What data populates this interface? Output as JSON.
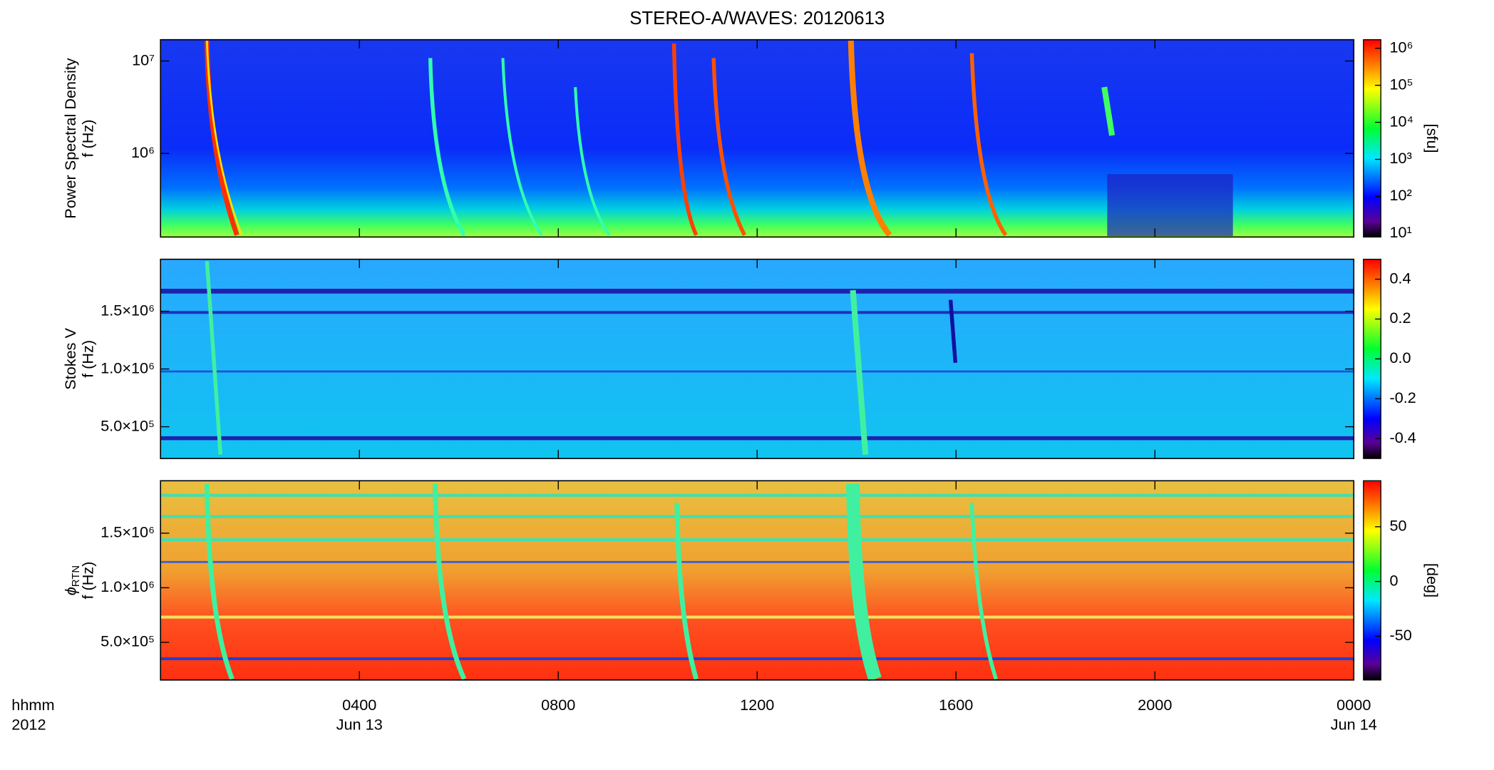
{
  "title": "STEREO-A/WAVES: 20120613",
  "chart_data": [
    {
      "type": "heatmap",
      "ylabel": "Power Spectral Density",
      "ylabel2": "f (Hz)",
      "ylog": true,
      "ylim": [
        124500,
        17000000
      ],
      "yticks": [
        {
          "value": 10000000,
          "label": "10⁷"
        },
        {
          "value": 1000000,
          "label": "10⁶"
        }
      ],
      "xlim": [
        0,
        24
      ],
      "xticks": [
        4,
        8,
        12,
        16,
        20
      ],
      "colorbar_label": "[sfu]",
      "clog": true,
      "clim": [
        8,
        1700000
      ],
      "cticks": [
        {
          "value": 1000000,
          "label": "10⁶"
        },
        {
          "value": 100000,
          "label": "10⁵"
        },
        {
          "value": 10000,
          "label": "10⁴"
        },
        {
          "value": 1000,
          "label": "10³"
        },
        {
          "value": 100,
          "label": "10²"
        },
        {
          "value": 10,
          "label": "10¹"
        }
      ]
    },
    {
      "type": "heatmap",
      "ylabel": "Stokes V",
      "ylabel2": "f (Hz)",
      "ylog": false,
      "ylim": [
        225000,
        1950000
      ],
      "yticks": [
        {
          "value": 1500000,
          "label": "1.5×10⁶"
        },
        {
          "value": 1000000,
          "label": "1.0×10⁶"
        },
        {
          "value": 500000,
          "label": "5.0×10⁵"
        }
      ],
      "xlim": [
        0,
        24
      ],
      "xticks": [
        4,
        8,
        12,
        16,
        20
      ],
      "clog": false,
      "clim": [
        -0.5,
        0.5
      ],
      "cticks": [
        0.4,
        0.2,
        {
          "value": 0,
          "label": "0.0"
        },
        -0.2,
        -0.4
      ]
    },
    {
      "type": "heatmap",
      "ylabel": "ϕ",
      "ylabel_sub": "RTN",
      "ylabel2": "f (Hz)",
      "ylog": false,
      "ylim": [
        155000,
        1980000
      ],
      "yticks": [
        {
          "value": 1500000,
          "label": "1.5×10⁶"
        },
        {
          "value": 1000000,
          "label": "1.0×10⁶"
        },
        {
          "value": 500000,
          "label": "5.0×10⁵"
        }
      ],
      "xlim": [
        0,
        24
      ],
      "xticks": [
        {
          "value": 4,
          "label": "0400"
        },
        {
          "value": 8,
          "label": "0800"
        },
        {
          "value": 12,
          "label": "1200"
        },
        {
          "value": 16,
          "label": "1600"
        },
        {
          "value": 20,
          "label": "2000"
        },
        {
          "value": 24,
          "label": "0000"
        }
      ],
      "xdates": [
        {
          "value": 4,
          "label": "Jun 13"
        },
        {
          "value": 24,
          "label": "Jun 14"
        }
      ],
      "xlabel": "hhmm",
      "xlabel2": "2012",
      "colorbar_label": "[deg]",
      "clog": false,
      "clim": [
        -90,
        92
      ],
      "cticks": [
        50,
        0,
        -50
      ]
    }
  ]
}
